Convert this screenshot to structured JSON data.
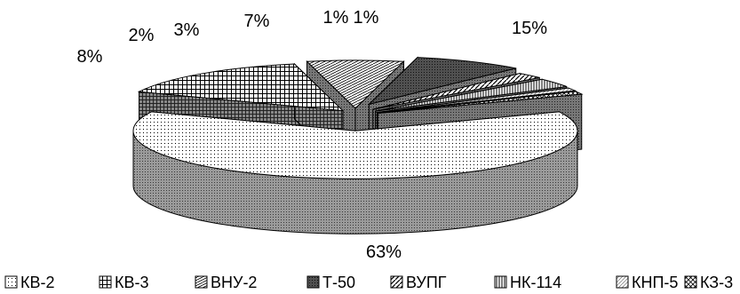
{
  "chart_data": {
    "type": "pie",
    "style": "3d-exploded",
    "title": "",
    "legend_position": "bottom",
    "labels_shown": "percent",
    "slices": [
      {
        "name": "КВ-2",
        "value": 63,
        "label": "63%",
        "pattern": "dots"
      },
      {
        "name": "КВ-3",
        "value": 15,
        "label": "15%",
        "pattern": "grid"
      },
      {
        "name": "ВНУ-2",
        "value": 7,
        "label": "7%",
        "pattern": "bricks"
      },
      {
        "name": "Т-50",
        "value": 8,
        "label": "8%",
        "pattern": "dark"
      },
      {
        "name": "ВУПГ",
        "value": 2,
        "label": "2%",
        "pattern": "diag"
      },
      {
        "name": "НК-114",
        "value": 3,
        "label": "3%",
        "pattern": "vlines"
      },
      {
        "name": "КНП-5",
        "value": 1,
        "label": "1%",
        "pattern": "light"
      },
      {
        "name": "КЗ-3",
        "value": 1,
        "label": "1%",
        "pattern": "cross"
      }
    ]
  }
}
